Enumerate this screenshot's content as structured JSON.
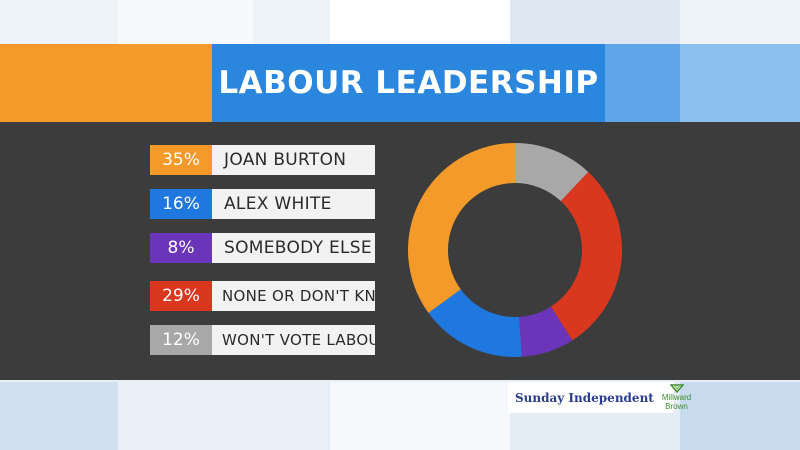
{
  "header": {
    "title": "LABOUR LEADERSHIP"
  },
  "chart_data": {
    "type": "pie",
    "donut": true,
    "title": "LABOUR LEADERSHIP",
    "categories": [
      "JOAN BURTON",
      "ALEX WHITE",
      "SOMEBODY ELSE",
      "NONE OR DON'T KNOW",
      "WON'T VOTE LABOUR"
    ],
    "values": [
      35,
      16,
      8,
      29,
      12
    ],
    "labels": [
      "35%",
      "16%",
      "8%",
      "29%",
      "12%"
    ],
    "colors": [
      "#f39a2a",
      "#1f77e0",
      "#6a35b8",
      "#d9381e",
      "#a8a8a8"
    ],
    "legend_position": "left"
  },
  "footer": {
    "newspaper": "Sunday Independent",
    "pollster_line1": "Millward",
    "pollster_line2": "Brown"
  },
  "colors": {
    "panel": "#3c3c3c",
    "header_blue": "#2b86de",
    "header_orange": "#f39a2a"
  }
}
